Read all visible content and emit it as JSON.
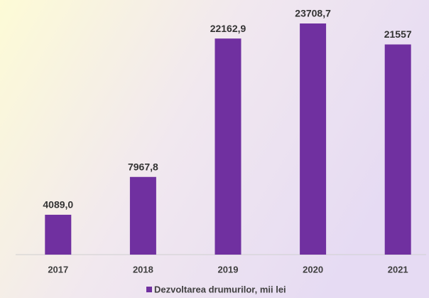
{
  "chart_data": {
    "type": "bar",
    "categories": [
      "2017",
      "2018",
      "2019",
      "2020",
      "2021"
    ],
    "series": [
      {
        "name": "Dezvoltarea drumurilor, mii lei",
        "color": "#7030a0",
        "values": [
          4089.0,
          7967.8,
          22162.9,
          23708.7,
          21557
        ],
        "value_labels": [
          "4089,0",
          "7967,8",
          "22162,9",
          "23708,7",
          "21557"
        ]
      }
    ],
    "ylim": [
      0,
      25000
    ]
  }
}
